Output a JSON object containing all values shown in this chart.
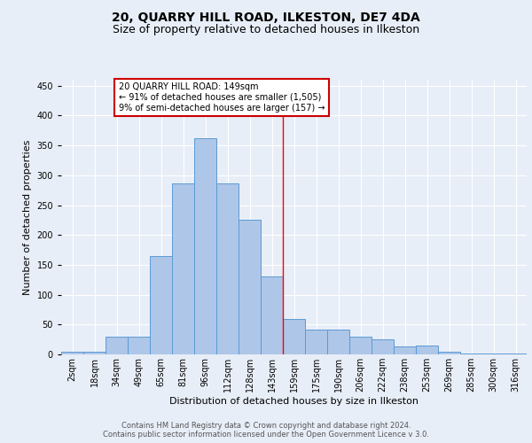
{
  "title": "20, QUARRY HILL ROAD, ILKESTON, DE7 4DA",
  "subtitle": "Size of property relative to detached houses in Ilkeston",
  "xlabel": "Distribution of detached houses by size in Ilkeston",
  "ylabel": "Number of detached properties",
  "bar_labels": [
    "2sqm",
    "18sqm",
    "34sqm",
    "49sqm",
    "65sqm",
    "81sqm",
    "96sqm",
    "112sqm",
    "128sqm",
    "143sqm",
    "159sqm",
    "175sqm",
    "190sqm",
    "206sqm",
    "222sqm",
    "238sqm",
    "253sqm",
    "269sqm",
    "285sqm",
    "300sqm",
    "316sqm"
  ],
  "bar_heights": [
    5,
    5,
    30,
    30,
    165,
    287,
    362,
    287,
    225,
    130,
    60,
    42,
    42,
    30,
    25,
    13,
    15,
    5,
    2,
    2,
    1
  ],
  "bar_color": "#aec6e8",
  "bar_edge_color": "#5b9bd5",
  "background_color": "#e8eef7",
  "grid_color": "#ffffff",
  "red_line_x": 9.5,
  "annotation_text": "20 QUARRY HILL ROAD: 149sqm\n← 91% of detached houses are smaller (1,505)\n9% of semi-detached houses are larger (157) →",
  "annotation_box_color": "#ffffff",
  "annotation_box_edge_color": "#cc0000",
  "ylim": [
    0,
    460
  ],
  "yticks": [
    0,
    50,
    100,
    150,
    200,
    250,
    300,
    350,
    400,
    450
  ],
  "title_fontsize": 10,
  "subtitle_fontsize": 9,
  "tick_fontsize": 7,
  "ylabel_fontsize": 8,
  "xlabel_fontsize": 8,
  "annotation_fontsize": 7,
  "footer_text": "Contains HM Land Registry data © Crown copyright and database right 2024.\nContains public sector information licensed under the Open Government Licence v 3.0.",
  "footer_fontsize": 6
}
